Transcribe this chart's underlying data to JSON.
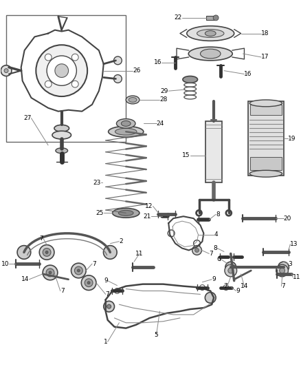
{
  "bg_color": "#ffffff",
  "line_color": "#444444",
  "label_color": "#000000",
  "gray1": "#555555",
  "gray2": "#888888",
  "gray3": "#aaaaaa",
  "gray4": "#cccccc",
  "gray5": "#e0e0e0",
  "figsize": [
    4.38,
    5.33
  ],
  "dpi": 100
}
